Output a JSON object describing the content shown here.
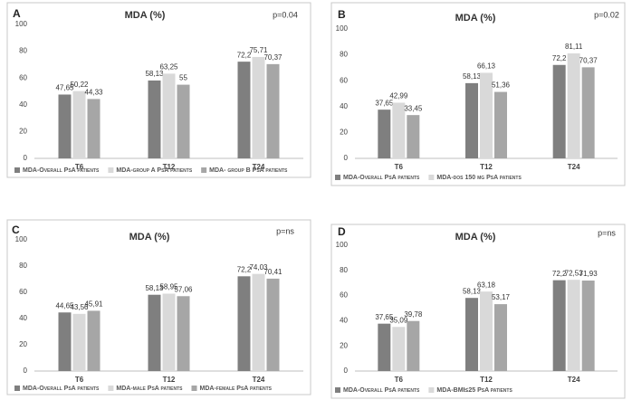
{
  "chart_data": [
    {
      "type": "bar",
      "panel": "A",
      "title": "MDA (%)",
      "annotation": "p=0.04",
      "categories": [
        "T6",
        "T12",
        "T24"
      ],
      "series": [
        {
          "name": "MDA-Overall PsA patients",
          "color": "#7f7f7f",
          "values": [
            47.65,
            58.13,
            72.2
          ],
          "value_labels": [
            "47,65",
            "58,13",
            "72,2"
          ]
        },
        {
          "name": "MDA-group A PsA patients",
          "color": "#d9d9d9",
          "values": [
            50.22,
            63.25,
            75.71
          ],
          "value_labels": [
            "50,22",
            "63,25",
            "75,71"
          ]
        },
        {
          "name": "MDA- group B PsA patients",
          "color": "#a6a6a6",
          "values": [
            44.33,
            55,
            70.37
          ],
          "value_labels": [
            "44,33",
            "55",
            "70,37"
          ]
        }
      ],
      "ylim": [
        0,
        100
      ],
      "yticks": [
        0,
        20,
        40,
        60,
        80,
        100
      ],
      "grid": false
    },
    {
      "type": "bar",
      "panel": "B",
      "title": "MDA (%)",
      "annotation": "p=0.02",
      "categories": [
        "T6",
        "T12",
        "T24"
      ],
      "series": [
        {
          "name": "MDA-Overall PsA patients",
          "color": "#7f7f7f",
          "values": [
            37.65,
            58.13,
            72.2
          ],
          "value_labels": [
            "37,65",
            "58,13",
            "72,2"
          ]
        },
        {
          "name": "MDA-dos 150 mg PsA patients",
          "color": "#d9d9d9",
          "values": [
            42.99,
            66.13,
            81.11
          ],
          "value_labels": [
            "42,99",
            "66,13",
            "81,11"
          ]
        },
        {
          "color": "#a6a6a6",
          "values": [
            33.45,
            51.36,
            70.37
          ],
          "value_labels": [
            "33,45",
            "51,36",
            "70,37"
          ]
        }
      ],
      "ylim": [
        0,
        100
      ],
      "yticks": [
        0,
        20,
        40,
        60,
        80,
        100
      ],
      "grid": false
    },
    {
      "type": "bar",
      "panel": "C",
      "title": "MDA (%)",
      "annotation": "p=ns",
      "categories": [
        "T6",
        "T12",
        "T24"
      ],
      "series": [
        {
          "name": "MDA-Overall PsA patients",
          "color": "#7f7f7f",
          "values": [
            44.65,
            58.13,
            72.2
          ],
          "value_labels": [
            "44,65",
            "58,13",
            "72,2"
          ]
        },
        {
          "name": "MDA-male PsA patients",
          "color": "#d9d9d9",
          "values": [
            43.56,
            58.95,
            74.03
          ],
          "value_labels": [
            "43,56",
            "58,95",
            "74,03"
          ]
        },
        {
          "name": "MDA-female PsA patients",
          "color": "#a6a6a6",
          "values": [
            45.91,
            57.06,
            70.41
          ],
          "value_labels": [
            "45,91",
            "57,06",
            "70,41"
          ]
        }
      ],
      "ylim": [
        0,
        100
      ],
      "yticks": [
        0,
        20,
        40,
        60,
        80,
        100
      ],
      "grid": false
    },
    {
      "type": "bar",
      "panel": "D",
      "title": "MDA (%)",
      "annotation": "p=ns",
      "categories": [
        "T6",
        "T12",
        "T24"
      ],
      "series": [
        {
          "name": "MDA-Overall PsA patients",
          "color": "#7f7f7f",
          "values": [
            37.65,
            58.13,
            72.2
          ],
          "value_labels": [
            "37,65",
            "58,13",
            "72,2"
          ]
        },
        {
          "name": "MDA-BMI≤25 PsA patients",
          "color": "#d9d9d9",
          "values": [
            35.09,
            63.18,
            72.53
          ],
          "value_labels": [
            "35,09",
            "63,18",
            "72,53"
          ]
        },
        {
          "color": "#a6a6a6",
          "values": [
            39.78,
            53.17,
            71.93
          ],
          "value_labels": [
            "39,78",
            "53,17",
            "71,93"
          ]
        }
      ],
      "ylim": [
        0,
        100
      ],
      "yticks": [
        0,
        20,
        40,
        60,
        80,
        100
      ],
      "grid": false
    }
  ]
}
